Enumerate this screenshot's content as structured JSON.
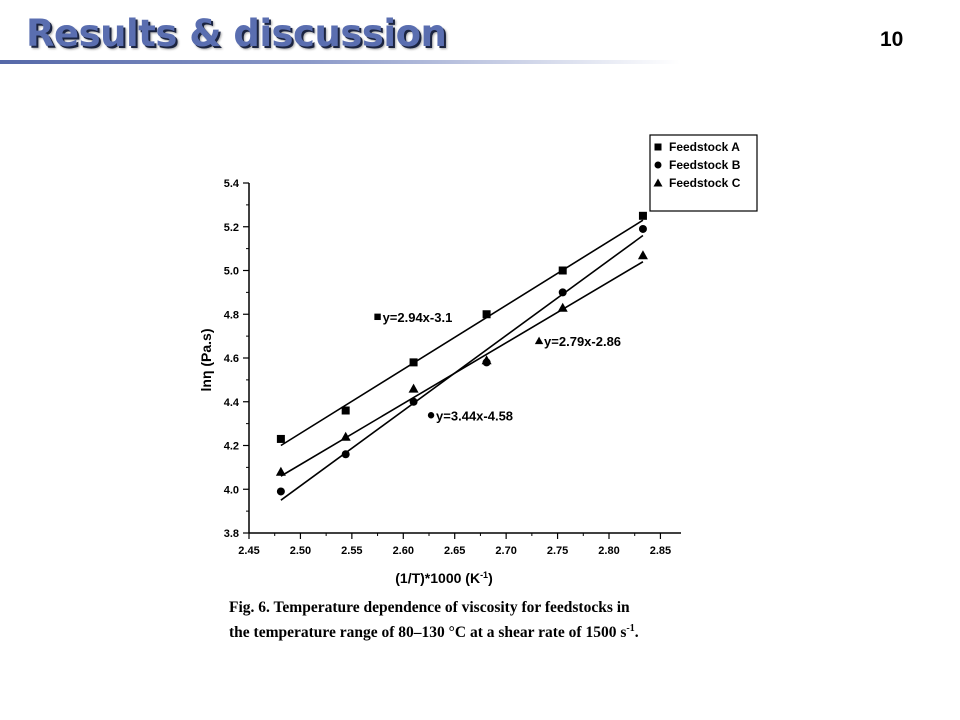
{
  "slide": {
    "title": "Results & discussion",
    "page_number": "10"
  },
  "caption": {
    "line1": "Fig. 6. Temperature dependence of viscosity for feedstocks in",
    "line2_pre": "the temperature range of 80–130 °C at a shear rate of 1500 s",
    "line2_sup": "-1",
    "line2_post": "."
  },
  "chart_data": {
    "type": "scatter",
    "xlabel": "(1/T)*1000 (K",
    "xlabel_sup": "-1",
    "xlabel_post": ")",
    "ylabel": "lnη (Pa.s)",
    "xlim": [
      2.45,
      2.87
    ],
    "ylim": [
      3.8,
      5.4
    ],
    "xticks": [
      2.45,
      2.5,
      2.55,
      2.6,
      2.65,
      2.7,
      2.75,
      2.8,
      2.85
    ],
    "xtick_labels": [
      "2.45",
      "2.50",
      "2.55",
      "2.60",
      "2.65",
      "2.70",
      "2.75",
      "2.80",
      "2.85"
    ],
    "yticks": [
      3.8,
      4.0,
      4.2,
      4.4,
      4.6,
      4.8,
      5.0,
      5.2,
      5.4
    ],
    "ytick_labels": [
      "3.8",
      "4.0",
      "4.2",
      "4.4",
      "4.6",
      "4.8",
      "5.0",
      "5.2",
      "5.4"
    ],
    "grid": false,
    "legend_position": "top-right",
    "series": [
      {
        "name": "Feedstock A",
        "marker": "square",
        "x": [
          2.481,
          2.544,
          2.61,
          2.681,
          2.755,
          2.833
        ],
        "y": [
          4.23,
          4.36,
          4.58,
          4.8,
          5.0,
          5.25
        ],
        "fit": {
          "slope": 2.94,
          "intercept": -3.1,
          "x_range": [
            2.481,
            2.833
          ],
          "y_range": [
            4.2,
            5.23
          ]
        },
        "equation": "y=2.94x-3.1"
      },
      {
        "name": "Feedstock B",
        "marker": "circle",
        "x": [
          2.481,
          2.544,
          2.61,
          2.681,
          2.755,
          2.833
        ],
        "y": [
          3.99,
          4.16,
          4.4,
          4.58,
          4.9,
          5.19
        ],
        "fit": {
          "slope": 3.44,
          "intercept": -4.58,
          "x_range": [
            2.481,
            2.833
          ],
          "y_range": [
            3.95,
            5.16
          ]
        },
        "equation": "y=3.44x-4.58"
      },
      {
        "name": "Feedstock C",
        "marker": "triangle",
        "x": [
          2.481,
          2.544,
          2.61,
          2.681,
          2.755,
          2.833
        ],
        "y": [
          4.08,
          4.24,
          4.46,
          4.59,
          4.83,
          5.07
        ],
        "fit": {
          "slope": 2.79,
          "intercept": -2.86,
          "x_range": [
            2.481,
            2.833
          ],
          "y_range": [
            4.06,
            5.04
          ]
        },
        "equation": "y=2.79x-2.86"
      }
    ],
    "annotations": [
      {
        "series": 0,
        "text": "y=2.94x-3.1",
        "x": 2.575,
        "y": 4.77
      },
      {
        "series": 1,
        "text": "y=3.44x-4.58",
        "x": 2.627,
        "y": 4.32
      },
      {
        "series": 2,
        "text": "y=2.79x-2.86",
        "x": 2.732,
        "y": 4.66
      }
    ]
  }
}
